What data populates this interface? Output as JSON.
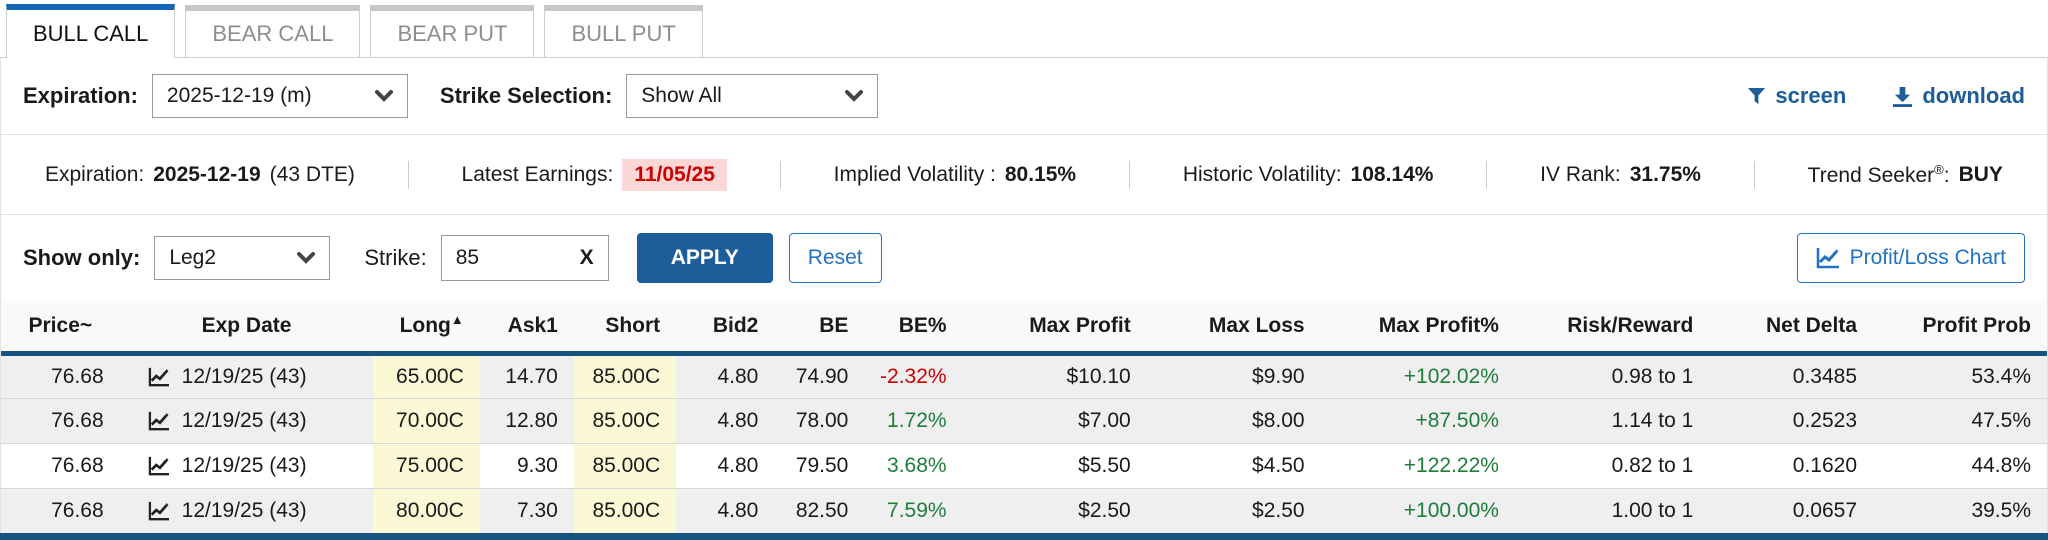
{
  "tabs": [
    {
      "label": "BULL CALL",
      "active": true
    },
    {
      "label": "BEAR CALL",
      "active": false
    },
    {
      "label": "BEAR PUT",
      "active": false
    },
    {
      "label": "BULL PUT",
      "active": false
    }
  ],
  "toolbar": {
    "expiration_label": "Expiration:",
    "expiration_value": "2025-12-19 (m)",
    "strike_selection_label": "Strike Selection:",
    "strike_selection_value": "Show All",
    "screen_label": "screen",
    "download_label": "download"
  },
  "stats": {
    "expiration": {
      "label": "Expiration:",
      "value": "2025-12-19",
      "suffix": "(43 DTE)"
    },
    "earnings": {
      "label": "Latest Earnings:",
      "value": "11/05/25"
    },
    "iv": {
      "label": "Implied Volatility :",
      "value": "80.15%"
    },
    "hv": {
      "label": "Historic Volatility:",
      "value": "108.14%"
    },
    "iv_rank": {
      "label": "IV Rank:",
      "value": "31.75%"
    },
    "trend_seeker": {
      "label": "Trend Seeker",
      "reg": "®",
      "colon": ":",
      "value": "BUY"
    }
  },
  "filter": {
    "show_only_label": "Show only:",
    "show_only_value": "Leg2",
    "strike_label": "Strike:",
    "strike_value": "85",
    "clear_label": "X",
    "apply_label": "APPLY",
    "reset_label": "Reset",
    "pl_chart_label": "Profit/Loss Chart"
  },
  "table": {
    "columns": [
      "Price~",
      "Exp Date",
      "Long",
      "Ask1",
      "Short",
      "Bid2",
      "BE",
      "BE%",
      "Max Profit",
      "Max Loss",
      "Max Profit%",
      "Risk/Reward",
      "Net Delta",
      "Profit Prob"
    ],
    "sort_column": "Long",
    "sort_indicator": "▲",
    "rows": [
      {
        "price": "76.68",
        "exp": "12/19/25 (43)",
        "long": "65.00C",
        "ask1": "14.70",
        "short": "85.00C",
        "bid2": "4.80",
        "be": "74.90",
        "be_pct": "-2.32%",
        "max_profit": "$10.10",
        "max_loss": "$9.90",
        "max_profit_pct": "+102.02%",
        "risk_reward": "0.98 to 1",
        "net_delta": "0.3485",
        "profit_prob": "53.4%"
      },
      {
        "price": "76.68",
        "exp": "12/19/25 (43)",
        "long": "70.00C",
        "ask1": "12.80",
        "short": "85.00C",
        "bid2": "4.80",
        "be": "78.00",
        "be_pct": "1.72%",
        "max_profit": "$7.00",
        "max_loss": "$8.00",
        "max_profit_pct": "+87.50%",
        "risk_reward": "1.14 to 1",
        "net_delta": "0.2523",
        "profit_prob": "47.5%"
      },
      {
        "price": "76.68",
        "exp": "12/19/25 (43)",
        "long": "75.00C",
        "ask1": "9.30",
        "short": "85.00C",
        "bid2": "4.80",
        "be": "79.50",
        "be_pct": "3.68%",
        "max_profit": "$5.50",
        "max_loss": "$4.50",
        "max_profit_pct": "+122.22%",
        "risk_reward": "0.82 to 1",
        "net_delta": "0.1620",
        "profit_prob": "44.8%"
      },
      {
        "price": "76.68",
        "exp": "12/19/25 (43)",
        "long": "80.00C",
        "ask1": "7.30",
        "short": "85.00C",
        "bid2": "4.80",
        "be": "82.50",
        "be_pct": "7.59%",
        "max_profit": "$2.50",
        "max_loss": "$2.50",
        "max_profit_pct": "+100.00%",
        "risk_reward": "1.00 to 1",
        "net_delta": "0.0657",
        "profit_prob": "39.5%"
      }
    ]
  },
  "colors": {
    "accent_blue": "#1467b8",
    "link_blue": "#1d5d99",
    "action_blue": "#2272c4",
    "table_border_blue": "#16537e",
    "negative_red": "#cc0000",
    "earnings_bg": "#fbd8d6",
    "positive_green": "#1e7c3c",
    "highlight_yellow": "#fbf8d6",
    "row_shade": "#efefef"
  }
}
